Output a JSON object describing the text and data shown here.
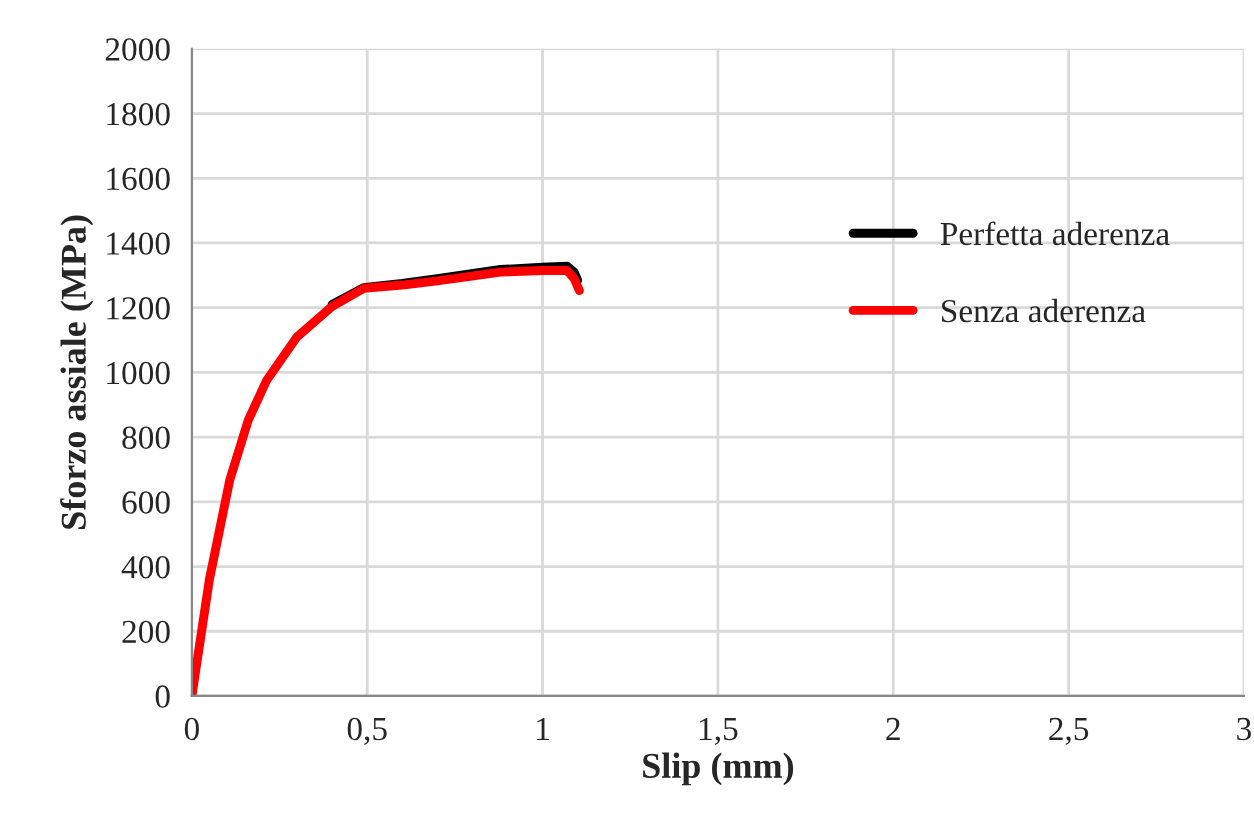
{
  "chart_data": {
    "type": "line",
    "xlabel": "Slip (mm)",
    "ylabel": "Sforzo assiale (MPa)",
    "xlim": [
      0,
      3
    ],
    "xticks": [
      {
        "value": 0,
        "label": "0"
      },
      {
        "value": 0.5,
        "label": "0,5"
      },
      {
        "value": 1,
        "label": "1"
      },
      {
        "value": 1.5,
        "label": "1,5"
      },
      {
        "value": 2,
        "label": "2"
      },
      {
        "value": 2.5,
        "label": "2,5"
      },
      {
        "value": 3,
        "label": "3"
      }
    ],
    "ylim": [
      0,
      2000
    ],
    "yticks": [
      0,
      200,
      400,
      600,
      800,
      1000,
      1200,
      1400,
      1600,
      1800,
      2000
    ],
    "grid": true,
    "legend": "right",
    "marker": "none",
    "line_style": "solid",
    "series": [
      {
        "name": "Perfetta aderenza",
        "color": "#000000",
        "x": [
          0.4,
          0.49,
          0.6,
          0.7,
          0.88,
          1.0,
          1.07,
          1.09,
          1.1
        ],
        "values": [
          1210,
          1262,
          1275,
          1290,
          1318,
          1325,
          1328,
          1310,
          1285
        ]
      },
      {
        "name": "Senza aderenza",
        "color": "#ff0000",
        "x": [
          0,
          0.05,
          0.108,
          0.16,
          0.213,
          0.3,
          0.4,
          0.49,
          0.6,
          0.7,
          0.88,
          1.0,
          1.07,
          1.09,
          1.105
        ],
        "values": [
          0,
          360,
          667,
          850,
          975,
          1110,
          1204,
          1260,
          1270,
          1283,
          1310,
          1315,
          1315,
          1290,
          1253
        ]
      }
    ]
  }
}
